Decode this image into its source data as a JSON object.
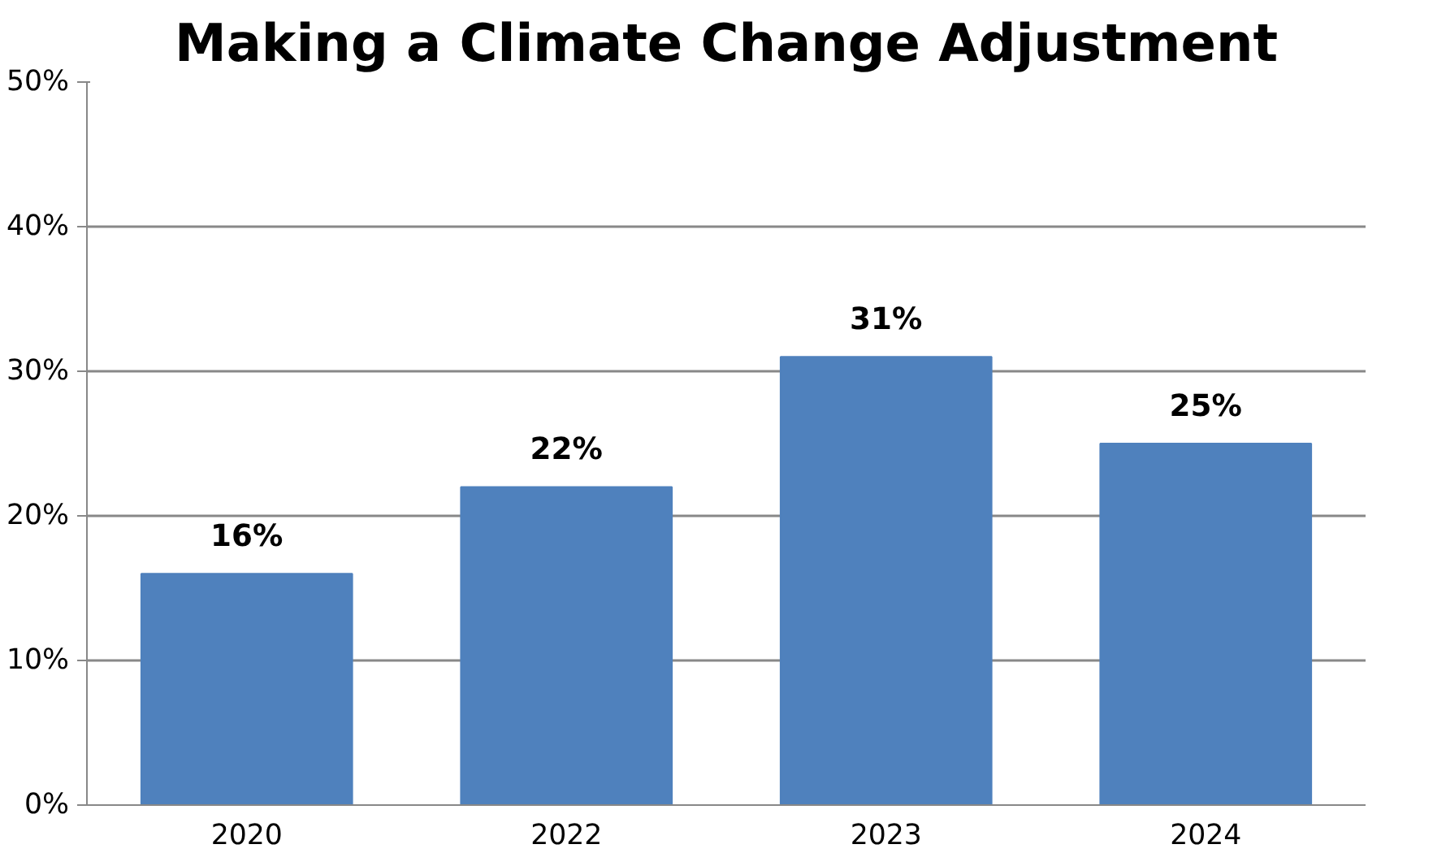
{
  "chart_data": {
    "type": "bar",
    "title": "Making a Climate Change Adjustment",
    "categories": [
      "2020",
      "2022",
      "2023",
      "2024"
    ],
    "values": [
      16,
      22,
      31,
      25
    ],
    "value_labels": [
      "16%",
      "22%",
      "31%",
      "25%"
    ],
    "color": "#4f81bd",
    "ylim": [
      0,
      50
    ],
    "yticks": [
      {
        "value": 0,
        "label": "0%"
      },
      {
        "value": 10,
        "label": "10%"
      },
      {
        "value": 20,
        "label": "20%"
      },
      {
        "value": 30,
        "label": "30%"
      },
      {
        "value": 40,
        "label": "40%"
      },
      {
        "value": 50,
        "label": "50%"
      }
    ],
    "grid": "y"
  }
}
